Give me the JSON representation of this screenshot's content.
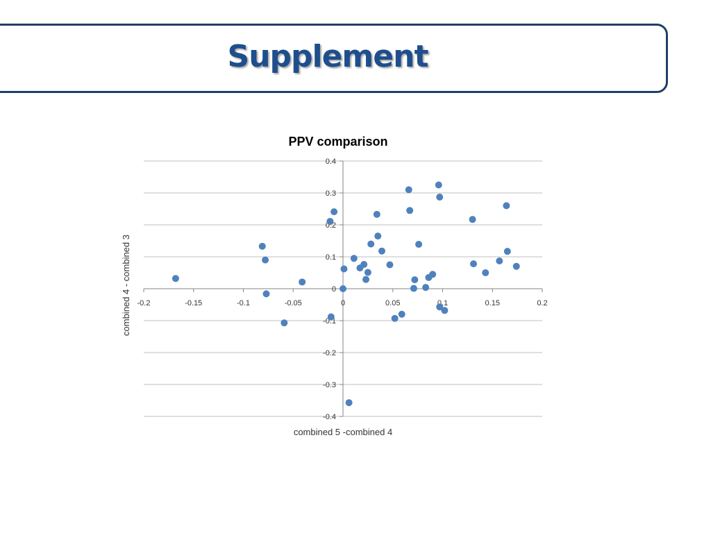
{
  "slide": {
    "title": "Supplement"
  },
  "chart_data": {
    "type": "scatter",
    "title": "PPV comparison",
    "xlabel": "combined 5 -combined 4",
    "ylabel": "combined 4 - combined 3",
    "xlim": [
      -0.2,
      0.2
    ],
    "ylim": [
      -0.4,
      0.4
    ],
    "xticks": [
      -0.2,
      -0.15,
      -0.1,
      -0.05,
      0,
      0.05,
      0.1,
      0.15,
      0.2
    ],
    "yticks": [
      -0.4,
      -0.3,
      -0.2,
      -0.1,
      0,
      0.1,
      0.2,
      0.3,
      0.4
    ],
    "xtick_labels": [
      "-0.2",
      "-0.15",
      "-0.1",
      "-0.05",
      "0",
      "0.05",
      "0.1",
      "0.15",
      "0.2"
    ],
    "ytick_labels": [
      "-0.4",
      "-0.3",
      "-0.2",
      "-0.1",
      "0",
      "0.1",
      "0.2",
      "0.3",
      "0.4"
    ],
    "grid": "horizontal",
    "marker_color": "#4f81bd",
    "points": [
      [
        -0.168,
        0.032
      ],
      [
        -0.081,
        0.133
      ],
      [
        -0.078,
        0.09
      ],
      [
        -0.077,
        -0.016
      ],
      [
        -0.059,
        -0.107
      ],
      [
        -0.041,
        0.021
      ],
      [
        -0.012,
        -0.088
      ],
      [
        -0.013,
        0.211
      ],
      [
        -0.009,
        0.241
      ],
      [
        0.001,
        0.062
      ],
      [
        0.0,
        0.0
      ],
      [
        0.011,
        0.095
      ],
      [
        0.017,
        0.065
      ],
      [
        0.021,
        0.076
      ],
      [
        0.023,
        0.029
      ],
      [
        0.025,
        0.051
      ],
      [
        0.028,
        0.14
      ],
      [
        0.034,
        0.233
      ],
      [
        0.035,
        0.165
      ],
      [
        0.039,
        0.118
      ],
      [
        0.047,
        0.075
      ],
      [
        0.052,
        -0.093
      ],
      [
        0.059,
        -0.08
      ],
      [
        0.066,
        0.31
      ],
      [
        0.067,
        0.245
      ],
      [
        0.071,
        0.001
      ],
      [
        0.072,
        0.028
      ],
      [
        0.076,
        0.139
      ],
      [
        0.083,
        0.004
      ],
      [
        0.086,
        0.035
      ],
      [
        0.09,
        0.045
      ],
      [
        0.096,
        0.325
      ],
      [
        0.097,
        0.287
      ],
      [
        0.097,
        -0.057
      ],
      [
        0.102,
        -0.068
      ],
      [
        0.13,
        0.217
      ],
      [
        0.131,
        0.078
      ],
      [
        0.143,
        0.05
      ],
      [
        0.157,
        0.087
      ],
      [
        0.164,
        0.26
      ],
      [
        0.165,
        0.117
      ],
      [
        0.174,
        0.07
      ],
      [
        0.006,
        -0.357
      ]
    ]
  }
}
